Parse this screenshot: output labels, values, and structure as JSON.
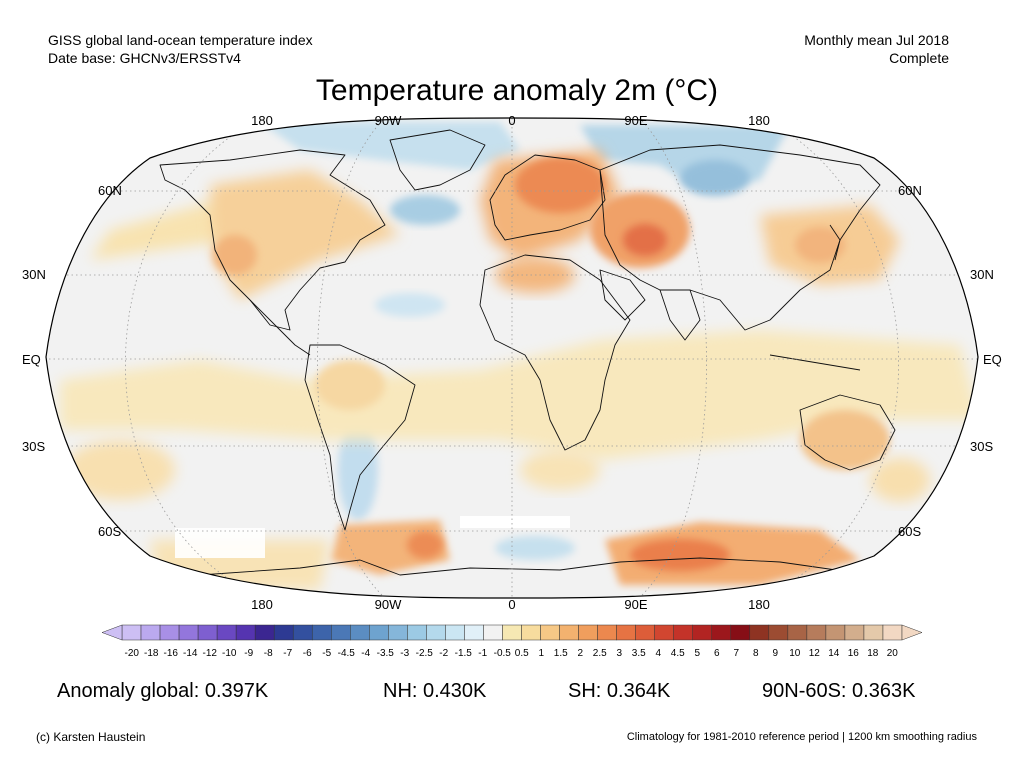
{
  "header": {
    "left_line1": "GISS global land-ocean temperature index",
    "left_line2": "Date base: GHCNv3/ERSSTv4",
    "right_line1": "Monthly mean Jul 2018",
    "right_line2": "Complete"
  },
  "title": "Temperature anomaly 2m (°C)",
  "longitude_labels_top": [
    "180",
    "90W",
    "0",
    "90E",
    "180"
  ],
  "longitude_labels_bottom": [
    "180",
    "90W",
    "0",
    "90E",
    "180"
  ],
  "latitude_labels_left": [
    "60N",
    "30N",
    "EQ",
    "30S",
    "60S"
  ],
  "latitude_labels_right": [
    "60N",
    "30N",
    "EQ",
    "30S",
    "60S"
  ],
  "colorbar": {
    "labels": [
      "-20",
      "-18",
      "-16",
      "-14",
      "-12",
      "-10",
      "-9",
      "-8",
      "-7",
      "-6",
      "-5",
      "-4.5",
      "-4",
      "-3.5",
      "-3",
      "-2.5",
      "-2",
      "-1.5",
      "-1",
      "-0.5",
      "0.5",
      "1",
      "1.5",
      "2",
      "2.5",
      "3",
      "3.5",
      "4",
      "4.5",
      "5",
      "6",
      "7",
      "8",
      "9",
      "10",
      "12",
      "14",
      "16",
      "18",
      "20"
    ],
    "colors": [
      "#cdbff4",
      "#bba9ef",
      "#a88fe6",
      "#9376dc",
      "#7e5fd0",
      "#6a48c2",
      "#5534b0",
      "#3b2691",
      "#2d3a93",
      "#33509f",
      "#3d64aa",
      "#4b78b6",
      "#5b8dc2",
      "#6ea3cf",
      "#85b6da",
      "#9ccae4",
      "#b4d9ec",
      "#cbe6f3",
      "#e1f0f8",
      "#f2f2f2",
      "#f6e8b3",
      "#f7dc9e",
      "#f6c886",
      "#f3b26f",
      "#f09e5d",
      "#ec884e",
      "#e67343",
      "#dd5d39",
      "#d14630",
      "#c43329",
      "#b22422",
      "#9c171c",
      "#860e16",
      "#8e3322",
      "#9c4c32",
      "#a86446",
      "#b67c5c",
      "#c49573",
      "#d3ae8d",
      "#e4c9aa",
      "#f2d8c3"
    ]
  },
  "stats": {
    "global": "Anomaly global: 0.397K",
    "nh": "NH: 0.430K",
    "sh": "SH: 0.364K",
    "polar": "90N-60S: 0.363K"
  },
  "footer": {
    "left": "(c) Karsten Haustein",
    "right": "Climatology for 1981-2010 reference period | 1200 km smoothing radius"
  }
}
